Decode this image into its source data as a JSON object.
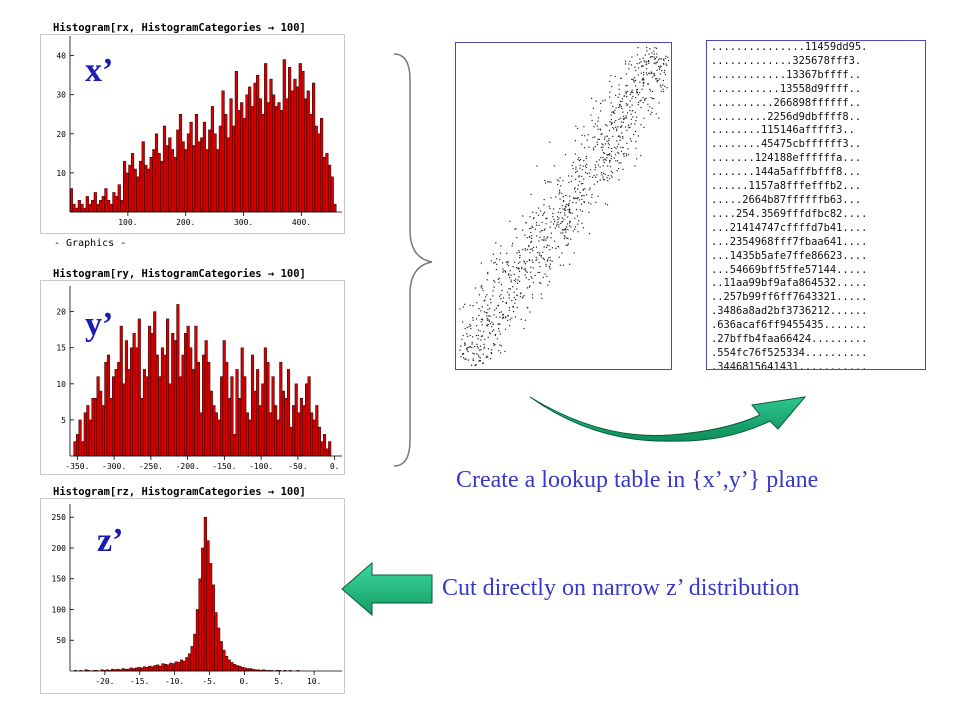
{
  "histograms": {
    "rx": {
      "title": "Histogram[rx, HistogramCategories → 100]",
      "var_label": "x’",
      "output": "- Graphics -"
    },
    "ry": {
      "title": "Histogram[ry, HistogramCategories → 100]",
      "var_label": "y’"
    },
    "rz": {
      "title": "Histogram[rz, HistogramCategories → 100]",
      "var_label": "z’"
    }
  },
  "captions": {
    "lookup": "Create a lookup table in {x’,y’} plane",
    "cut": "Cut directly on narrow z’ distribution"
  },
  "lookup_table": [
    "...............11459dd95.",
    ".............325678fff3.",
    "............13367bffff..",
    "...........13558d9ffff..",
    "..........266898ffffff..",
    ".........2256d9dbffff8..",
    "........115146afffff3..",
    "........45475cbffffff3..",
    ".......124188effffffa...",
    ".......144a5afffbfff8...",
    "......1157a8fffefffb2...",
    ".....2664b87ffffffb63...",
    "....254.3569fffdfbc82....",
    "...21414747cffffd7b41....",
    "...2354968fff7fbaa641....",
    "...1435b5afe7ffe86623....",
    "...54669bff5ffe57144.....",
    "..11aa99bf9afa864532.....",
    "..257b99ff6ff7643321.....",
    ".3486a8ad2bf3736212......",
    ".636acaf6ff9455435.......",
    ".27bffb4faa66424.........",
    ".554fc76f525334..........",
    ".3446815641431...........",
    ".........................."
  ],
  "colors": {
    "bar_fill": "#d40000",
    "bar_stroke": "#2a0000",
    "arrow": "#1aa870",
    "label_blue": "#1a1ab4",
    "caption_blue": "#3838c8"
  },
  "chart_data": [
    {
      "type": "bar",
      "title": "Histogram[rx, HistogramCategories → 100]",
      "xticks": [
        100,
        200,
        300,
        400
      ],
      "xtick_labels": [
        "100.",
        "200.",
        "300.",
        "400."
      ],
      "yticks": [
        10,
        20,
        30,
        40
      ],
      "yticklabels": [
        "10",
        "20",
        "30",
        "40"
      ],
      "xlim": [
        0,
        470
      ],
      "ylim": [
        0,
        44
      ],
      "bin_start": 0,
      "bin_width": 4.6,
      "values": [
        6,
        2,
        1,
        3,
        2,
        1,
        4,
        2,
        3,
        5,
        2,
        3,
        4,
        6,
        3,
        2,
        5,
        4,
        7,
        3,
        13,
        10,
        12,
        15,
        11,
        9,
        13,
        18,
        12,
        11,
        14,
        16,
        20,
        15,
        13,
        22,
        17,
        19,
        16,
        14,
        21,
        25,
        18,
        16,
        20,
        23,
        17,
        25,
        18,
        19,
        23,
        16,
        21,
        27,
        20,
        16,
        22,
        31,
        25,
        19,
        29,
        22,
        36,
        26,
        28,
        24,
        30,
        32,
        27,
        33,
        35,
        29,
        25,
        38,
        28,
        34,
        30,
        27,
        28,
        26,
        39,
        29,
        37,
        31,
        34,
        32,
        38,
        36,
        29,
        31,
        25,
        33,
        22,
        20,
        24,
        14,
        15,
        12,
        9,
        2
      ]
    },
    {
      "type": "bar",
      "title": "Histogram[ry, HistogramCategories → 100]",
      "xticks": [
        -350,
        -300,
        -250,
        -200,
        -150,
        -100,
        -50,
        0
      ],
      "xtick_labels": [
        "-350.",
        "-300.",
        "-250.",
        "-200.",
        "-150.",
        "-100.",
        "-50.",
        "0."
      ],
      "yticks": [
        5,
        10,
        15,
        20
      ],
      "yticklabels": [
        "5",
        "10",
        "15",
        "20"
      ],
      "xlim": [
        -360,
        10
      ],
      "ylim": [
        0,
        23
      ],
      "bin_start": -355,
      "bin_width": 3.5,
      "values": [
        2,
        3,
        5,
        2,
        6,
        7,
        5,
        8,
        8,
        11,
        9,
        7,
        13,
        14,
        8,
        11,
        12,
        13,
        18,
        10,
        16,
        12,
        15,
        17,
        15,
        19,
        8,
        12,
        11,
        18,
        17,
        20,
        14,
        11,
        15,
        14,
        19,
        10,
        17,
        16,
        21,
        11,
        14,
        17,
        18,
        15,
        12,
        18,
        13,
        6,
        14,
        16,
        13,
        9,
        7,
        6,
        5,
        11,
        16,
        13,
        8,
        11,
        3,
        12,
        8,
        15,
        11,
        6,
        5,
        14,
        9,
        12,
        7,
        10,
        15,
        13,
        6,
        11,
        7,
        5,
        13,
        9,
        8,
        12,
        4,
        7,
        10,
        6,
        8,
        7,
        10,
        11,
        6,
        5,
        7,
        4,
        2,
        3,
        1,
        2
      ]
    },
    {
      "type": "bar",
      "title": "Histogram[rz, HistogramCategories → 100]",
      "xticks": [
        -20,
        -15,
        -10,
        -5,
        0,
        5,
        10
      ],
      "xtick_labels": [
        "-20.",
        "-15.",
        "-10.",
        "-5.",
        "0.",
        "5.",
        "10."
      ],
      "yticks": [
        50,
        100,
        150,
        200,
        250
      ],
      "yticklabels": [
        "50",
        "100",
        "150",
        "200",
        "250"
      ],
      "xlim": [
        -25,
        14
      ],
      "ylim": [
        0,
        265
      ],
      "bin_start": -24.4,
      "bin_width": 0.38,
      "values": [
        1,
        0,
        1,
        0,
        2,
        1,
        0,
        1,
        1,
        0,
        2,
        1,
        2,
        1,
        3,
        2,
        3,
        2,
        4,
        3,
        3,
        5,
        4,
        5,
        6,
        5,
        7,
        6,
        8,
        7,
        9,
        10,
        8,
        12,
        11,
        10,
        13,
        12,
        15,
        14,
        18,
        16,
        22,
        28,
        40,
        60,
        100,
        150,
        200,
        250,
        212,
        175,
        140,
        95,
        70,
        48,
        34,
        24,
        18,
        14,
        11,
        9,
        8,
        6,
        5,
        4,
        4,
        3,
        2,
        2,
        1,
        2,
        1,
        1,
        1,
        0,
        1,
        1,
        0,
        1,
        0,
        1,
        0,
        0,
        1,
        0,
        0,
        0,
        0,
        0,
        0,
        0,
        0,
        0,
        0,
        0,
        0,
        0,
        0,
        0
      ]
    }
  ]
}
